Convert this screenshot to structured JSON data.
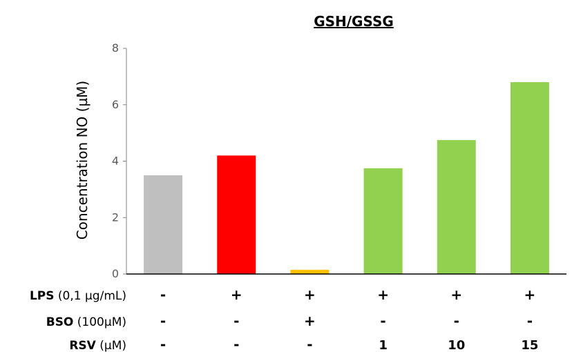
{
  "chart_data": {
    "type": "bar",
    "title": "GSH/GSSG",
    "ylabel": "Concentration NO (µM)",
    "xlabel": "",
    "ylim": [
      0,
      8
    ],
    "yticks": [
      "0",
      "2",
      "4",
      "6",
      "8"
    ],
    "grid": false,
    "values": [
      3.5,
      4.2,
      0.15,
      3.75,
      4.75,
      6.8
    ],
    "colors": [
      "#bfbfbf",
      "#ff0000",
      "#ffc000",
      "#92d050",
      "#92d050",
      "#92d050"
    ],
    "conditions": [
      {
        "label_bold": "LPS",
        "label_unit": " (0,1 µg/mL)",
        "values": [
          "-",
          "+",
          "+",
          "+",
          "+",
          "+"
        ]
      },
      {
        "label_bold": "BSO",
        "label_unit": " (100µM)",
        "values": [
          "-",
          "-",
          "+",
          "-",
          "-",
          "-"
        ]
      },
      {
        "label_bold": "RSV",
        "label_unit": " (µM)",
        "values": [
          "-",
          "-",
          "-",
          "1",
          "10",
          "15"
        ]
      }
    ]
  }
}
